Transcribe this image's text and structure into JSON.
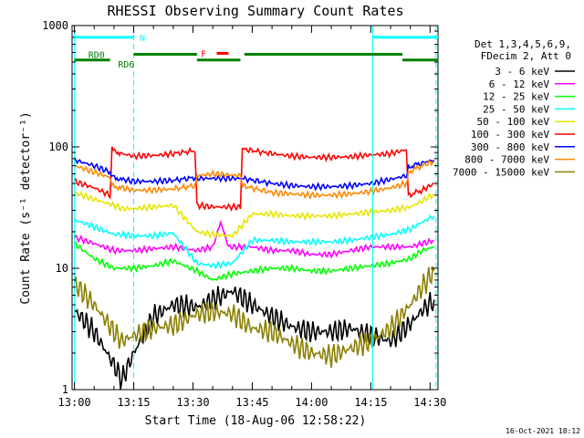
{
  "chart_data": {
    "type": "line",
    "title": "RHESSI Observing Summary Count Rates",
    "xlabel": "Start Time (18-Aug-06 12:58:22)",
    "ylabel": "Count Rate (s⁻¹ detector⁻¹)",
    "y_scale": "log",
    "ylim": [
      1,
      1000
    ],
    "x_tick_labels": [
      "13:00",
      "13:15",
      "13:30",
      "13:45",
      "14:00",
      "14:15",
      "14:30"
    ],
    "x_tick_minutes": [
      0,
      15,
      30,
      45,
      60,
      75,
      90
    ],
    "x_range_minutes": [
      -0.6,
      92
    ],
    "y_tick_labels": [
      "1",
      "10",
      "100",
      "1000"
    ],
    "y_tick_values": [
      1,
      10,
      100,
      1000
    ],
    "legend": {
      "position": "right",
      "header": [
        "Det 1,3,4,5,6,9,",
        "FDecim 2, Att 0"
      ],
      "entries": [
        {
          "label": "3 - 6 keV",
          "color": "#000000"
        },
        {
          "label": "6 - 12 keV",
          "color": "#ff00ff"
        },
        {
          "label": "12 - 25 keV",
          "color": "#00ff00"
        },
        {
          "label": "25 - 50 keV",
          "color": "#00ffff"
        },
        {
          "label": "50 - 100 keV",
          "color": "#e6e600"
        },
        {
          "label": "100 - 300 keV",
          "color": "#ff0000"
        },
        {
          "label": "300 - 800 keV",
          "color": "#0000ff"
        },
        {
          "label": "800 - 7000 keV",
          "color": "#ff8800"
        },
        {
          "label": "7000 - 15000 keV",
          "color": "#8b8000"
        }
      ]
    },
    "series": [
      {
        "name": "3 - 6 keV",
        "color": "#000000",
        "x": [
          0,
          5,
          10,
          12,
          15,
          20,
          25,
          31,
          35,
          40,
          45,
          50,
          55,
          60,
          65,
          70,
          75,
          80,
          85,
          88,
          91
        ],
        "y": [
          4.5,
          3.0,
          1.6,
          1.2,
          2.0,
          4.0,
          5.0,
          4.8,
          5.5,
          6.5,
          5.0,
          4.0,
          3.3,
          3.0,
          3.0,
          3.2,
          2.8,
          2.5,
          3.5,
          4.5,
          5.5
        ]
      },
      {
        "name": "6 - 12 keV",
        "color": "#ff00ff",
        "x": [
          0,
          5,
          10,
          12,
          15,
          20,
          25,
          31,
          35,
          37,
          39,
          45,
          50,
          55,
          60,
          65,
          70,
          75,
          80,
          85,
          88,
          91
        ],
        "y": [
          18,
          16,
          14,
          14,
          14,
          14.5,
          15,
          14,
          15,
          24,
          15,
          15,
          14,
          14,
          13,
          13,
          14,
          15,
          15,
          15,
          16,
          17
        ]
      },
      {
        "name": "12 - 25 keV",
        "color": "#00ff00",
        "x": [
          0,
          5,
          10,
          12,
          15,
          20,
          25,
          31,
          35,
          40,
          45,
          50,
          55,
          60,
          65,
          70,
          75,
          80,
          85,
          88,
          91
        ],
        "y": [
          16,
          12,
          10,
          10,
          10,
          10.5,
          11.5,
          9.5,
          8.0,
          9.0,
          9.5,
          10,
          10,
          9.5,
          9.5,
          10,
          10.5,
          11,
          12,
          14,
          15
        ]
      },
      {
        "name": "25 - 50 keV",
        "color": "#00ffff",
        "x": [
          0,
          5,
          10,
          12,
          15,
          20,
          25,
          31,
          35,
          40,
          45,
          50,
          55,
          60,
          65,
          70,
          75,
          80,
          85,
          88,
          91
        ],
        "y": [
          25,
          22,
          19,
          19,
          18.5,
          18.5,
          19.5,
          11,
          10.5,
          11,
          17,
          17,
          16.5,
          16.5,
          16.5,
          17,
          18,
          19,
          21,
          24,
          27
        ]
      },
      {
        "name": "50 - 100 keV",
        "color": "#e6e600",
        "x": [
          0,
          5,
          10,
          12,
          15,
          20,
          25,
          31,
          35,
          40,
          45,
          50,
          55,
          60,
          65,
          70,
          75,
          80,
          85,
          88,
          91
        ],
        "y": [
          42,
          37,
          33,
          31,
          31,
          32,
          33,
          20,
          19,
          18.5,
          28,
          28,
          27,
          27,
          27,
          28,
          29,
          30,
          32,
          36,
          41
        ]
      },
      {
        "name": "100 - 300 keV",
        "color": "#ff0000",
        "x": [
          0,
          5,
          9,
          9.5,
          12,
          15,
          20,
          25,
          30.5,
          31,
          35,
          42,
          42.5,
          50,
          55,
          60,
          65,
          70,
          75,
          80,
          84,
          84.5,
          88,
          91
        ],
        "y": [
          52,
          46,
          40,
          95,
          88,
          84,
          85,
          88,
          93,
          33,
          32,
          32,
          96,
          88,
          84,
          82,
          82,
          83,
          86,
          88,
          95,
          40,
          44,
          50
        ]
      },
      {
        "name": "300 - 800 keV",
        "color": "#0000ff",
        "x": [
          0,
          5,
          9,
          9.5,
          12,
          15,
          20,
          25,
          30.5,
          31,
          35,
          42,
          42.5,
          50,
          55,
          60,
          65,
          70,
          75,
          80,
          84,
          84.5,
          88,
          91
        ],
        "y": [
          78,
          70,
          62,
          57,
          54,
          52,
          52,
          53,
          56,
          55,
          55,
          55,
          55,
          50,
          48,
          47,
          47,
          48,
          50,
          54,
          58,
          68,
          74,
          78
        ]
      },
      {
        "name": "800 - 7000 keV",
        "color": "#ff8800",
        "x": [
          0,
          5,
          9,
          9.5,
          12,
          15,
          20,
          25,
          30.5,
          31,
          35,
          42,
          42.5,
          50,
          55,
          60,
          65,
          70,
          75,
          80,
          84,
          84.5,
          88,
          91
        ],
        "y": [
          70,
          62,
          56,
          48,
          46,
          44,
          44,
          45,
          48,
          58,
          60,
          58,
          48,
          42,
          41,
          40,
          40,
          41,
          43,
          46,
          50,
          62,
          70,
          76
        ]
      },
      {
        "name": "7000 - 15000 keV",
        "color": "#8b8000",
        "x": [
          0,
          5,
          10,
          12,
          15,
          20,
          25,
          31,
          35,
          40,
          45,
          50,
          55,
          60,
          65,
          70,
          75,
          80,
          85,
          88,
          91
        ],
        "y": [
          7.5,
          5.0,
          3.0,
          2.5,
          2.8,
          3.2,
          3.4,
          4.2,
          4.4,
          4.2,
          3.2,
          3.0,
          2.4,
          2.0,
          1.9,
          2.2,
          2.5,
          3.2,
          5.0,
          7.0,
          9.5
        ]
      }
    ],
    "annotations": [
      {
        "text": "N",
        "color": "#00ffff"
      },
      {
        "text": "F",
        "color": "#ff0000"
      },
      {
        "text": "RD0",
        "color": "#008000"
      },
      {
        "text": "RD6",
        "color": "#008000"
      }
    ],
    "state_bars": [
      {
        "label": "N",
        "color": "#00ffff",
        "y": 800,
        "segments": [
          [
            0,
            15
          ],
          [
            75.5,
            92
          ]
        ]
      },
      {
        "label": "F",
        "color": "#ff0000",
        "y": 590,
        "segments": [
          [
            36,
            39
          ]
        ]
      },
      {
        "label": "RD0",
        "color": "#008000",
        "y": 580,
        "segments": [
          [
            15,
            31
          ],
          [
            43,
            83
          ]
        ]
      },
      {
        "label": "RD6",
        "color": "#008000",
        "y": 520,
        "segments": [
          [
            0,
            9
          ],
          [
            31,
            42
          ],
          [
            83,
            92
          ]
        ]
      }
    ],
    "vertical_markers": [
      {
        "x": 0,
        "color": "#00ffff",
        "style": "solid"
      },
      {
        "x": 15,
        "color": "#00ffff",
        "style": "dashed"
      },
      {
        "x": 75.5,
        "color": "#00ffff",
        "style": "solid"
      },
      {
        "x": 91.5,
        "color": "#00ffff",
        "style": "dashed"
      }
    ]
  },
  "timestamp": "16-Oct-2021 18:12"
}
